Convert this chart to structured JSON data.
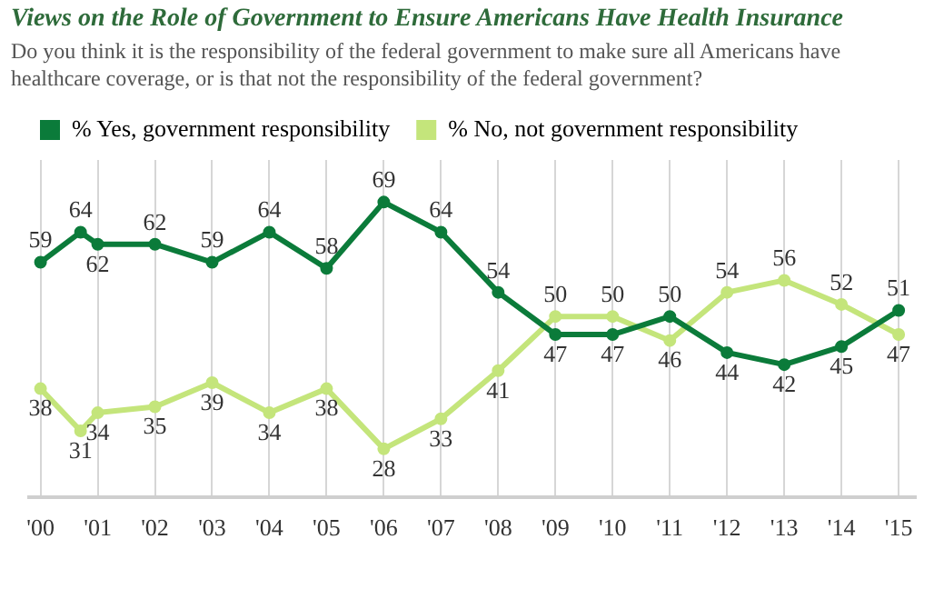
{
  "chart_data": {
    "type": "line",
    "title": "Views on the Role of Government to Ensure Americans Have Health Insurance",
    "subtitle": "Do you think it is the responsibility of the federal government to make sure all Americans have healthcare coverage, or is that not the responsibility of the federal government?",
    "x": [
      2000,
      2000.7,
      2001,
      2002,
      2003,
      2004,
      2005,
      2006,
      2007,
      2008,
      2009,
      2010,
      2011,
      2012,
      2013,
      2014,
      2015
    ],
    "series": [
      {
        "name": "% Yes, government responsibility",
        "color": "#0b7b3a",
        "values": [
          59,
          64,
          62,
          62,
          59,
          64,
          58,
          69,
          64,
          54,
          47,
          47,
          50,
          44,
          42,
          45,
          51
        ]
      },
      {
        "name": "% No, not government responsibility",
        "color": "#c4e57b",
        "values": [
          38,
          31,
          34,
          35,
          39,
          34,
          38,
          28,
          33,
          41,
          50,
          50,
          46,
          54,
          56,
          52,
          47
        ]
      }
    ],
    "xlim": [
      1999.8,
      2015.3
    ],
    "ylim": [
      20,
      76
    ],
    "xticks": [
      {
        "value": 2000,
        "label": "'00"
      },
      {
        "value": 2001,
        "label": "'01"
      },
      {
        "value": 2002,
        "label": "'02"
      },
      {
        "value": 2003,
        "label": "'03"
      },
      {
        "value": 2004,
        "label": "'04"
      },
      {
        "value": 2005,
        "label": "'05"
      },
      {
        "value": 2006,
        "label": "'06"
      },
      {
        "value": 2007,
        "label": "'07"
      },
      {
        "value": 2008,
        "label": "'08"
      },
      {
        "value": 2009,
        "label": "'09"
      },
      {
        "value": 2010,
        "label": "'10"
      },
      {
        "value": 2011,
        "label": "'11"
      },
      {
        "value": 2012,
        "label": "'12"
      },
      {
        "value": 2013,
        "label": "'13"
      },
      {
        "value": 2014,
        "label": "'14"
      },
      {
        "value": 2015,
        "label": "'15"
      }
    ],
    "grid": "x",
    "legend": "top left",
    "marker": "circle",
    "line_style": "solid",
    "data_labels": true,
    "tick_labels": "x"
  }
}
